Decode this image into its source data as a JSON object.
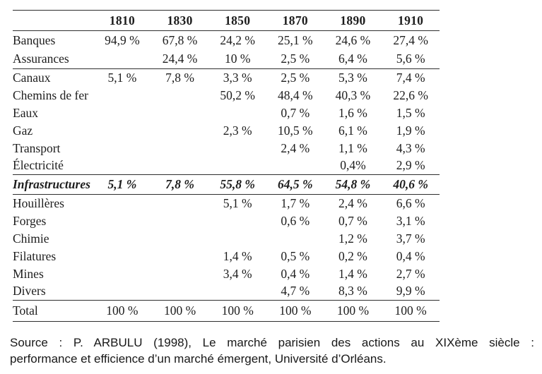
{
  "table": {
    "header": {
      "years": [
        "1810",
        "1830",
        "1850",
        "1870",
        "1890",
        "1910"
      ]
    },
    "sections": [
      {
        "name": "financial",
        "rows": [
          {
            "label": "Banques",
            "values": [
              "94,9 %",
              "67,8 %",
              "24,2 %",
              "25,1 %",
              "24,6 %",
              "27,4 %"
            ]
          },
          {
            "label": "Assurances",
            "values": [
              "",
              "24,4 %",
              "10 %",
              "2,5 %",
              "6,4 %",
              "5,6 %"
            ]
          }
        ]
      },
      {
        "name": "infra",
        "rows": [
          {
            "label": "Canaux",
            "values": [
              "5,1 %",
              "7,8 %",
              "3,3 %",
              "2,5 %",
              "5,3 %",
              "7,4 %"
            ]
          },
          {
            "label": "Chemins de fer",
            "values": [
              "",
              "",
              "50,2 %",
              "48,4 %",
              "40,3 %",
              "22,6 %"
            ]
          },
          {
            "label": "Eaux",
            "values": [
              "",
              "",
              "",
              "0,7 %",
              "1,6 %",
              "1,5 %"
            ]
          },
          {
            "label": "Gaz",
            "values": [
              "",
              "",
              "2,3 %",
              "10,5 %",
              "6,1 %",
              "1,9 %"
            ]
          },
          {
            "label": "Transport",
            "values": [
              "",
              "",
              "",
              "2,4 %",
              "1,1 %",
              "4,3 %"
            ]
          },
          {
            "label": "Électricité",
            "values": [
              "",
              "",
              "",
              "",
              "0,4%",
              "2,9 %"
            ]
          }
        ]
      },
      {
        "name": "summary",
        "rows": [
          {
            "label": "Infrastructures",
            "values": [
              "5,1 %",
              "7,8 %",
              "55,8 %",
              "64,5 %",
              "54,8 %",
              "40,6 %"
            ]
          }
        ]
      },
      {
        "name": "industry",
        "rows": [
          {
            "label": "Houillères",
            "values": [
              "",
              "",
              "5,1 %",
              "1,7 %",
              "2,4 %",
              "6,6 %"
            ]
          },
          {
            "label": "Forges",
            "values": [
              "",
              "",
              "",
              "0,6 %",
              "0,7 %",
              "3,1 %"
            ]
          },
          {
            "label": "Chimie",
            "values": [
              "",
              "",
              "",
              "",
              "1,2 %",
              "3,7 %"
            ]
          },
          {
            "label": "Filatures",
            "values": [
              "",
              "",
              "1,4 %",
              "0,5 %",
              "0,2 %",
              "0,4 %"
            ]
          },
          {
            "label": "Mines",
            "values": [
              "",
              "",
              "3,4 %",
              "0,4 %",
              "1,4 %",
              "2,7 %"
            ]
          },
          {
            "label": "Divers",
            "values": [
              "",
              "",
              "",
              "4,7 %",
              "8,3 %",
              "9,9 %"
            ]
          }
        ]
      },
      {
        "name": "total",
        "rows": [
          {
            "label": "Total",
            "values": [
              "100 %",
              "100 %",
              "100 %",
              "100 %",
              "100 %",
              "100 %"
            ]
          }
        ]
      }
    ]
  },
  "source_note": {
    "line1": "Source : P. ARBULU (1998), Le marché parisien des actions au XIXème siècle :",
    "line2": "performance et efficience d’un marché émergent, Université d’Orléans."
  }
}
